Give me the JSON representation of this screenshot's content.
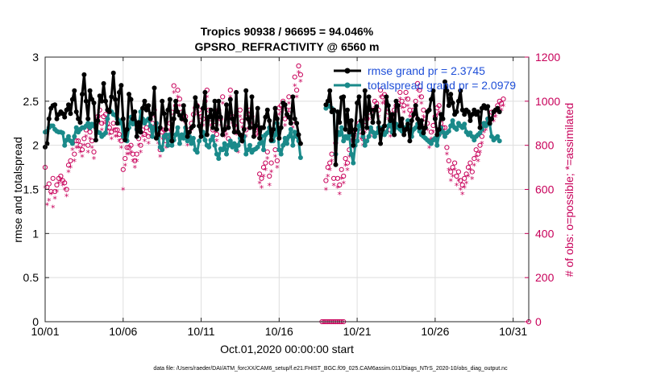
{
  "chart_data": {
    "type": "line",
    "title": "Tropics 90938 / 96695 = 94.046%",
    "subtitle": "GPSRO_REFRACTIVITY @ 6560 m",
    "xlabel": "Oct.01,2020 00:00:00 start",
    "ylabel": "rmse and totalspread",
    "ylabel_right": "# of obs: o=possible; *=assimilated",
    "footer": "data file: /Users/raeder/DAI/ATM_forcXX/CAM6_setup/f.e21.FHIST_BGC.f09_025.CAM6assim.011/Diags_NTrS_2020-10/obs_diag_output.nc",
    "x_range": [
      1,
      32
    ],
    "ylim": [
      0,
      3
    ],
    "ylim_right": [
      0,
      1200
    ],
    "xticks": [
      1,
      6,
      11,
      16,
      21,
      26,
      31
    ],
    "xtick_labels": [
      "10/01",
      "10/06",
      "10/11",
      "10/16",
      "10/21",
      "10/26",
      "10/31"
    ],
    "yticks": [
      0,
      0.5,
      1,
      1.5,
      2,
      2.5,
      3
    ],
    "ytick_labels": [
      "0",
      "0.5",
      "1",
      "1.5",
      "2",
      "2.5",
      "3"
    ],
    "yticks_right": [
      0,
      200,
      400,
      600,
      800,
      1000,
      1200
    ],
    "ytick_labels_right": [
      "0",
      "200",
      "400",
      "600",
      "800",
      "1000",
      "1200"
    ],
    "legend": [
      "rmse grand pr = 2.3745",
      "totalspread grand pr = 2.0979"
    ],
    "gap_days_x": [
      18.75,
      18.875,
      19.0,
      19.125,
      19.25,
      19.375,
      19.5,
      19.625,
      19.75,
      19.875,
      20.0,
      20.125
    ],
    "series": [
      {
        "name": "rmse",
        "color": "#000000",
        "x0": 1,
        "dx": 0.125,
        "values": [
          1.98,
          2.02,
          2.3,
          2.42,
          2.45,
          2.46,
          2.3,
          2.35,
          2.38,
          2.36,
          2.32,
          2.4,
          2.46,
          2.36,
          2.52,
          2.62,
          2.38,
          2.3,
          2.26,
          2.58,
          2.8,
          2.5,
          2.3,
          2.62,
          2.52,
          2.48,
          2.06,
          2.28,
          2.56,
          2.5,
          2.7,
          2.5,
          2.4,
          2.38,
          2.55,
          2.82,
          2.52,
          2.25,
          2.6,
          2.68,
          2.3,
          2.06,
          2.18,
          2.58,
          2.52,
          2.3,
          2.38,
          2.1,
          2.26,
          2.15,
          2.42,
          2.5,
          2.4,
          2.45,
          2.3,
          2.36,
          2.65,
          2.08,
          2.12,
          2.2,
          2.5,
          2.36,
          2.18,
          2.4,
          2.52,
          2.05,
          2.3,
          2.5,
          2.38,
          2.34,
          2.3,
          2.45,
          2.28,
          2.1,
          2.15,
          2.2,
          2.22,
          2.54,
          2.44,
          2.22,
          2.1,
          2.42,
          2.6,
          2.12,
          2.32,
          2.4,
          2.2,
          2.5,
          2.18,
          2.5,
          2.32,
          2.12,
          2.18,
          2.46,
          2.2,
          2.52,
          2.3,
          2.15,
          2.6,
          2.15,
          2.12,
          2.05,
          2.18,
          2.62,
          2.3,
          2.2,
          2.55,
          2.1,
          2.22,
          2.42,
          2.08,
          2.2,
          2.2,
          2.32,
          2.4,
          2.28,
          2.06,
          2.18,
          2.42,
          2.3,
          2.08,
          2.2,
          2.48,
          2.46,
          2.35,
          2.32,
          2.25,
          2.55,
          2.3,
          2.25,
          2.12,
          2.02,
          null,
          null,
          null,
          null,
          null,
          null,
          null,
          null,
          null,
          null,
          null,
          null,
          2.46,
          2.5,
          2.62,
          2.38,
          2.4,
          1.78,
          2.38,
          2.26,
          2.54,
          2.55,
          2.18,
          2.4,
          2.15,
          2.28,
          2.0,
          2.18,
          2.48,
          2.55,
          2.28,
          2.14,
          2.62,
          2.2,
          2.55,
          2.4,
          2.26,
          2.4,
          2.44,
          2.26,
          2.02,
          2.18,
          2.22,
          2.55,
          2.45,
          2.28,
          2.35,
          2.12,
          2.5,
          2.45,
          2.22,
          2.3,
          2.12,
          2.18,
          2.24,
          2.05,
          2.28,
          2.35,
          2.45,
          2.3,
          2.2,
          2.28,
          2.14,
          2.2,
          2.38,
          2.4,
          2.52,
          2.62,
          2.3,
          2.12,
          2.18,
          2.35,
          2.3,
          2.72,
          2.62,
          2.45,
          2.58,
          2.48,
          2.35,
          2.38,
          2.5,
          2.62,
          2.4,
          2.35,
          2.4,
          2.38,
          2.28,
          2.35,
          2.4,
          2.35,
          2.38,
          2.2,
          2.42,
          2.45,
          2.42,
          2.44,
          2.25,
          2.3,
          2.38,
          2.4,
          2.42,
          2.38
        ]
      },
      {
        "name": "totalspread",
        "color": "#1a8a8a",
        "x0": 1,
        "dx": 0.125,
        "values": [
          2.15,
          2.16,
          2.2,
          2.22,
          2.22,
          2.18,
          2.16,
          2.15,
          2.15,
          2.14,
          2.0,
          2.06,
          2.1,
          2.05,
          2.02,
          2.1,
          2.2,
          2.15,
          2.18,
          2.2,
          2.2,
          2.22,
          2.25,
          2.2,
          2.24,
          2.22,
          2.22,
          2.15,
          2.14,
          2.1,
          2.12,
          2.14,
          2.3,
          2.4,
          2.38,
          2.35,
          2.34,
          2.3,
          2.25,
          2.28,
          2.1,
          2.08,
          2.05,
          2.2,
          2.32,
          2.24,
          2.28,
          2.18,
          2.22,
          2.38,
          2.3,
          2.25,
          2.28,
          2.3,
          2.22,
          2.1,
          2.2,
          2.25,
          2.1,
          1.98,
          1.95,
          2.1,
          2.12,
          2.0,
          2.12,
          2.0,
          2.06,
          2.12,
          2.2,
          2.02,
          2.12,
          2.08,
          2.2,
          2.05,
          2.1,
          2.02,
          2.08,
          1.95,
          1.92,
          2.05,
          2.1,
          2.15,
          2.06,
          2.0,
          1.98,
          2.06,
          2.1,
          2.0,
          1.9,
          1.85,
          1.96,
          1.95,
          2.02,
          1.9,
          2.0,
          2.05,
          1.98,
          2.02,
          1.95,
          2.0,
          2.08,
          2.06,
          2.1,
          1.9,
          1.95,
          2.0,
          1.92,
          1.95,
          1.96,
          1.98,
          2.02,
          2.1,
          1.95,
          2.12,
          2.14,
          2.2,
          2.05,
          2.05,
          2.12,
          2.25,
          1.95,
          1.9,
          2.0,
          2.08,
          2.02,
          2.1,
          2.18,
          2.0,
          2.15,
          2.1,
          2.05,
          1.86,
          null,
          null,
          null,
          null,
          null,
          null,
          null,
          null,
          null,
          null,
          null,
          null,
          2.42,
          2.45,
          2.44,
          2.42,
          2.4,
          1.9,
          2.15,
          2.12,
          2.2,
          2.05,
          2.1,
          2.08,
          2.12,
          1.9,
          1.8,
          2.0,
          2.05,
          2.22,
          2.25,
          2.1,
          2.0,
          2.05,
          2.1,
          2.2,
          2.15,
          2.1,
          2.14,
          2.2,
          2.18,
          2.2,
          2.12,
          2.15,
          2.22,
          2.25,
          2.15,
          2.12,
          2.24,
          2.2,
          2.18,
          2.16,
          2.2,
          2.2,
          2.28,
          2.15,
          2.1,
          2.18,
          2.2,
          2.24,
          2.16,
          2.12,
          2.1,
          2.08,
          2.06,
          2.04,
          2.02,
          2.06,
          2.08,
          2.0,
          2.12,
          2.2,
          2.15,
          2.1,
          2.14,
          2.16,
          2.22,
          2.28,
          2.2,
          2.18,
          2.25,
          2.22,
          2.2,
          2.24,
          2.15,
          2.12,
          2.14,
          2.1,
          2.06,
          2.1,
          2.12,
          2.14,
          2.18,
          2.25,
          2.22,
          2.3,
          2.24,
          2.1,
          2.06,
          2.08,
          2.1,
          2.05
        ]
      },
      {
        "name": "obs possible",
        "color": "#c8005a",
        "marker": "o",
        "x0": 1,
        "dx": 0.125,
        "values": [
          700,
          610,
          625,
          590,
          650,
          590,
          620,
          650,
          660,
          640,
          630,
          600,
          710,
          730,
          810,
          760,
          820,
          820,
          800,
          780,
          830,
          870,
          800,
          860,
          820,
          770,
          880,
          930,
          960,
          900,
          930,
          940,
          900,
          880,
          860,
          900,
          870,
          870,
          850,
          820,
          690,
          740,
          790,
          790,
          800,
          760,
          730,
          760,
          830,
          800,
          870,
          850,
          880,
          840,
          870,
          900,
          960,
          900,
          840,
          780,
          860,
          870,
          820,
          860,
          900,
          950,
          1070,
          980,
          1050,
          1010,
          950,
          940,
          930,
          830,
          870,
          900,
          940,
          970,
          980,
          960,
          930,
          920,
          1000,
          1050,
          960,
          920,
          870,
          890,
          850,
          960,
          920,
          1020,
          870,
          880,
          830,
          1050,
          930,
          890,
          880,
          800,
          960,
          910,
          840,
          870,
          940,
          960,
          930,
          880,
          870,
          880,
          670,
          650,
          700,
          720,
          770,
          660,
          720,
          850,
          780,
          730,
          970,
          980,
          1000,
          920,
          960,
          1020,
          960,
          910,
          1110,
          1050,
          1160,
          1120,
          null,
          null,
          null,
          null,
          null,
          null,
          null,
          null,
          null,
          null,
          null,
          null,
          640,
          700,
          720,
          760,
          650,
          810,
          650,
          620,
          690,
          660,
          740,
          720,
          780,
          850,
          820,
          870,
          860,
          900,
          860,
          830,
          890,
          920,
          950,
          870,
          960,
          1000,
          990,
          960,
          1050,
          1020,
          1030,
          990,
          950,
          870,
          910,
          960,
          980,
          990,
          1040,
          1000,
          980,
          1040,
          1010,
          960,
          940,
          960,
          1000,
          1080,
          1050,
          1020,
          960,
          920,
          900,
          820,
          860,
          890,
          930,
          970,
          980,
          900,
          880,
          880,
          790,
          730,
          680,
          700,
          720,
          660,
          680,
          640,
          620,
          650,
          670,
          700,
          720,
          680,
          740,
          780,
          760,
          800,
          840,
          890,
          900,
          920,
          920,
          950,
          940,
          960,
          980,
          1000,
          990,
          1010
        ]
      },
      {
        "name": "obs assimilated",
        "color": "#c8005a",
        "marker": "*",
        "x0": 1,
        "dx": 0.125,
        "values": [
          610,
          530,
          550,
          580,
          520,
          560,
          590,
          630,
          640,
          620,
          600,
          570,
          680,
          700,
          780,
          730,
          790,
          790,
          770,
          750,
          800,
          840,
          770,
          830,
          790,
          740,
          850,
          900,
          930,
          870,
          900,
          910,
          870,
          850,
          830,
          870,
          840,
          840,
          820,
          790,
          600,
          710,
          760,
          760,
          770,
          730,
          700,
          730,
          800,
          770,
          840,
          820,
          850,
          810,
          840,
          870,
          930,
          870,
          810,
          750,
          830,
          840,
          790,
          830,
          870,
          920,
          1040,
          950,
          1020,
          980,
          920,
          910,
          900,
          800,
          840,
          870,
          910,
          940,
          950,
          930,
          900,
          890,
          970,
          1020,
          930,
          890,
          840,
          860,
          820,
          930,
          890,
          990,
          840,
          850,
          800,
          1020,
          900,
          860,
          850,
          770,
          930,
          880,
          810,
          840,
          910,
          930,
          900,
          850,
          840,
          850,
          630,
          610,
          660,
          690,
          740,
          620,
          680,
          820,
          750,
          700,
          940,
          950,
          970,
          890,
          930,
          990,
          930,
          880,
          1070,
          1020,
          1130,
          1090,
          null,
          null,
          null,
          null,
          null,
          null,
          null,
          null,
          null,
          null,
          null,
          null,
          600,
          660,
          690,
          730,
          620,
          780,
          610,
          580,
          650,
          630,
          710,
          690,
          750,
          820,
          790,
          840,
          830,
          870,
          830,
          800,
          860,
          890,
          920,
          840,
          930,
          970,
          960,
          930,
          1020,
          990,
          1000,
          960,
          920,
          840,
          880,
          930,
          950,
          960,
          1010,
          970,
          950,
          1010,
          980,
          930,
          910,
          930,
          970,
          1050,
          1020,
          990,
          930,
          890,
          870,
          790,
          830,
          860,
          900,
          940,
          950,
          870,
          850,
          850,
          760,
          690,
          640,
          660,
          690,
          620,
          640,
          600,
          580,
          610,
          630,
          660,
          690,
          650,
          710,
          750,
          730,
          770,
          810,
          860,
          870,
          890,
          890,
          920,
          910,
          930,
          950,
          970,
          960,
          980
        ]
      }
    ]
  }
}
